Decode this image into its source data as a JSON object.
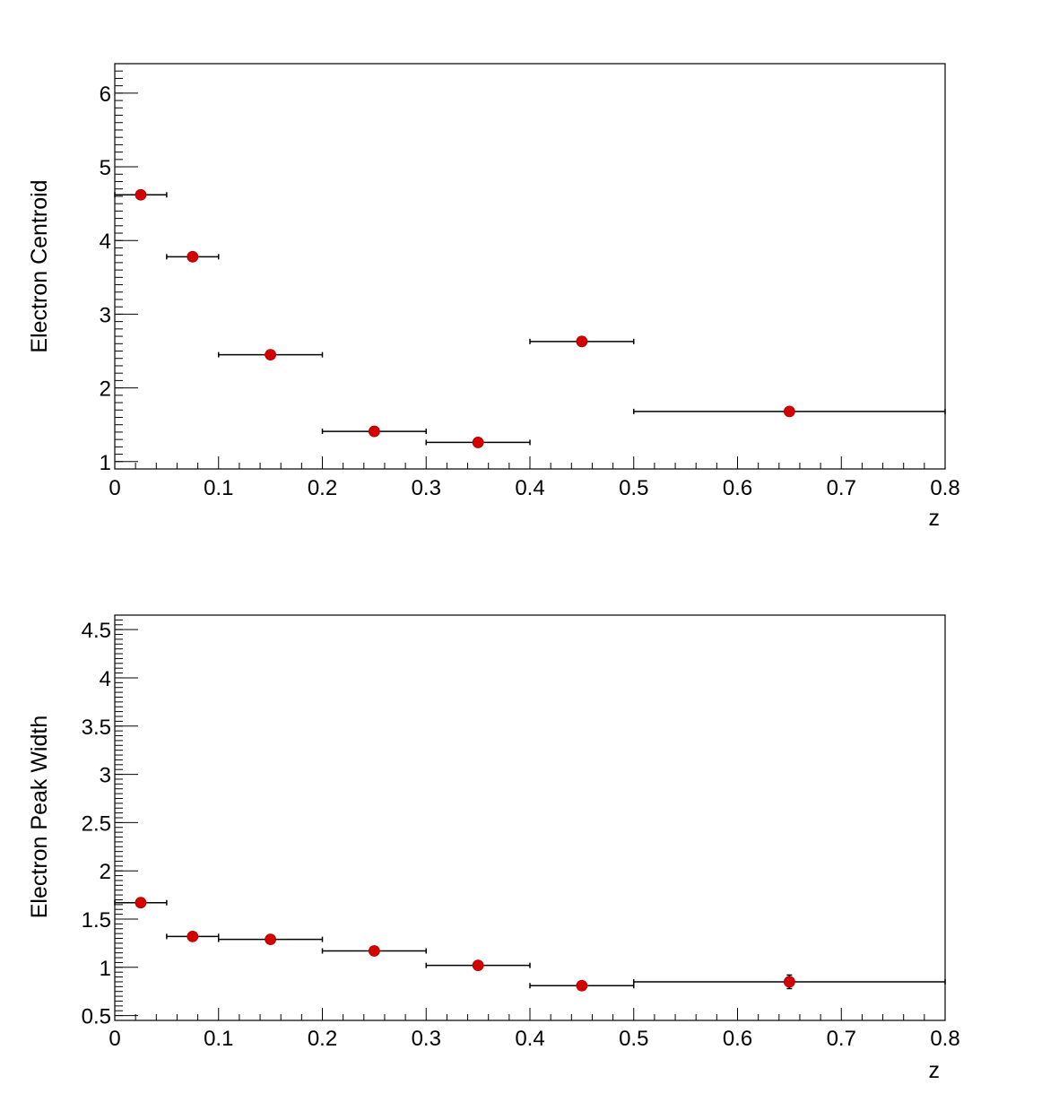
{
  "chart_data": [
    {
      "type": "scatter",
      "title": "",
      "xlabel": "z",
      "ylabel": "Electron Centroid",
      "xlim": [
        0,
        0.8
      ],
      "ylim": [
        0.9,
        6.4
      ],
      "x_ticks": [
        0,
        0.1,
        0.2,
        0.3,
        0.4,
        0.5,
        0.6,
        0.7,
        0.8
      ],
      "x_tick_labels": [
        "0",
        "0.1",
        "0.2",
        "0.3",
        "0.4",
        "0.5",
        "0.6",
        "0.7",
        "0.8"
      ],
      "y_ticks": [
        1,
        2,
        3,
        4,
        5,
        6
      ],
      "y_tick_labels": [
        "1",
        "2",
        "3",
        "4",
        "5",
        "6"
      ],
      "grid": false,
      "marker_color": "#d40000",
      "points": [
        {
          "x": 0.025,
          "y": 4.62,
          "xerr": 0.025,
          "yerr": 0.0
        },
        {
          "x": 0.075,
          "y": 3.78,
          "xerr": 0.025,
          "yerr": 0.0
        },
        {
          "x": 0.15,
          "y": 2.45,
          "xerr": 0.05,
          "yerr": 0.0
        },
        {
          "x": 0.25,
          "y": 1.41,
          "xerr": 0.05,
          "yerr": 0.0
        },
        {
          "x": 0.35,
          "y": 1.26,
          "xerr": 0.05,
          "yerr": 0.0
        },
        {
          "x": 0.45,
          "y": 2.63,
          "xerr": 0.05,
          "yerr": 0.0
        },
        {
          "x": 0.65,
          "y": 1.68,
          "xerr": 0.15,
          "yerr": 0.0
        }
      ]
    },
    {
      "type": "scatter",
      "title": "",
      "xlabel": "z",
      "ylabel": "Electron Peak Width",
      "xlim": [
        0,
        0.8
      ],
      "ylim": [
        0.45,
        4.65
      ],
      "x_ticks": [
        0,
        0.1,
        0.2,
        0.3,
        0.4,
        0.5,
        0.6,
        0.7,
        0.8
      ],
      "x_tick_labels": [
        "0",
        "0.1",
        "0.2",
        "0.3",
        "0.4",
        "0.5",
        "0.6",
        "0.7",
        "0.8"
      ],
      "y_ticks": [
        0.5,
        1,
        1.5,
        2,
        2.5,
        3,
        3.5,
        4,
        4.5
      ],
      "y_tick_labels": [
        "0.5",
        "1",
        "1.5",
        "2",
        "2.5",
        "3",
        "3.5",
        "4",
        "4.5"
      ],
      "grid": false,
      "marker_color": "#d40000",
      "points": [
        {
          "x": 0.025,
          "y": 1.67,
          "xerr": 0.025,
          "yerr": 0.0
        },
        {
          "x": 0.075,
          "y": 1.32,
          "xerr": 0.025,
          "yerr": 0.0
        },
        {
          "x": 0.15,
          "y": 1.29,
          "xerr": 0.05,
          "yerr": 0.0
        },
        {
          "x": 0.25,
          "y": 1.17,
          "xerr": 0.05,
          "yerr": 0.0
        },
        {
          "x": 0.35,
          "y": 1.02,
          "xerr": 0.05,
          "yerr": 0.0
        },
        {
          "x": 0.45,
          "y": 0.81,
          "xerr": 0.05,
          "yerr": 0.0
        },
        {
          "x": 0.65,
          "y": 0.85,
          "xerr": 0.15,
          "yerr": 0.07
        }
      ]
    }
  ]
}
